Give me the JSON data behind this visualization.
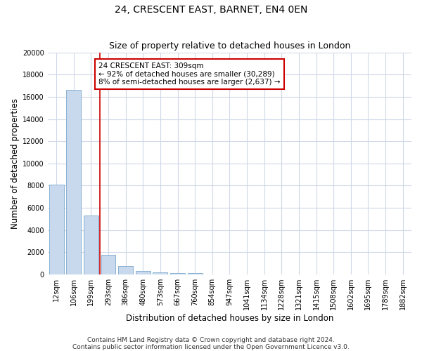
{
  "title": "24, CRESCENT EAST, BARNET, EN4 0EN",
  "subtitle": "Size of property relative to detached houses in London",
  "xlabel": "Distribution of detached houses by size in London",
  "ylabel": "Number of detached properties",
  "bar_color": "#c8d9ee",
  "bar_edge_color": "#7ba7cc",
  "categories": [
    "12sqm",
    "106sqm",
    "199sqm",
    "293sqm",
    "386sqm",
    "480sqm",
    "573sqm",
    "667sqm",
    "760sqm",
    "854sqm",
    "947sqm",
    "1041sqm",
    "1134sqm",
    "1228sqm",
    "1321sqm",
    "1415sqm",
    "1508sqm",
    "1602sqm",
    "1695sqm",
    "1789sqm",
    "1882sqm"
  ],
  "bar_heights": [
    8100,
    16600,
    5300,
    1800,
    750,
    350,
    200,
    150,
    150,
    0,
    0,
    0,
    0,
    0,
    0,
    0,
    0,
    0,
    0,
    0,
    0
  ],
  "ylim": [
    0,
    20000
  ],
  "yticks": [
    0,
    2000,
    4000,
    6000,
    8000,
    10000,
    12000,
    14000,
    16000,
    18000,
    20000
  ],
  "vline_x": 2.5,
  "vline_color": "#cc0000",
  "annotation_text": "24 CRESCENT EAST: 309sqm\n← 92% of detached houses are smaller (30,289)\n8% of semi-detached houses are larger (2,637) →",
  "annotation_box_facecolor": "#ffffff",
  "annotation_box_edgecolor": "#cc0000",
  "footer_text": "Contains HM Land Registry data © Crown copyright and database right 2024.\nContains public sector information licensed under the Open Government Licence v3.0.",
  "background_color": "#ffffff",
  "grid_color": "#d0d8e8",
  "title_fontsize": 10,
  "subtitle_fontsize": 9,
  "axis_label_fontsize": 8.5,
  "tick_fontsize": 7,
  "annotation_fontsize": 7.5,
  "footer_fontsize": 6.5
}
